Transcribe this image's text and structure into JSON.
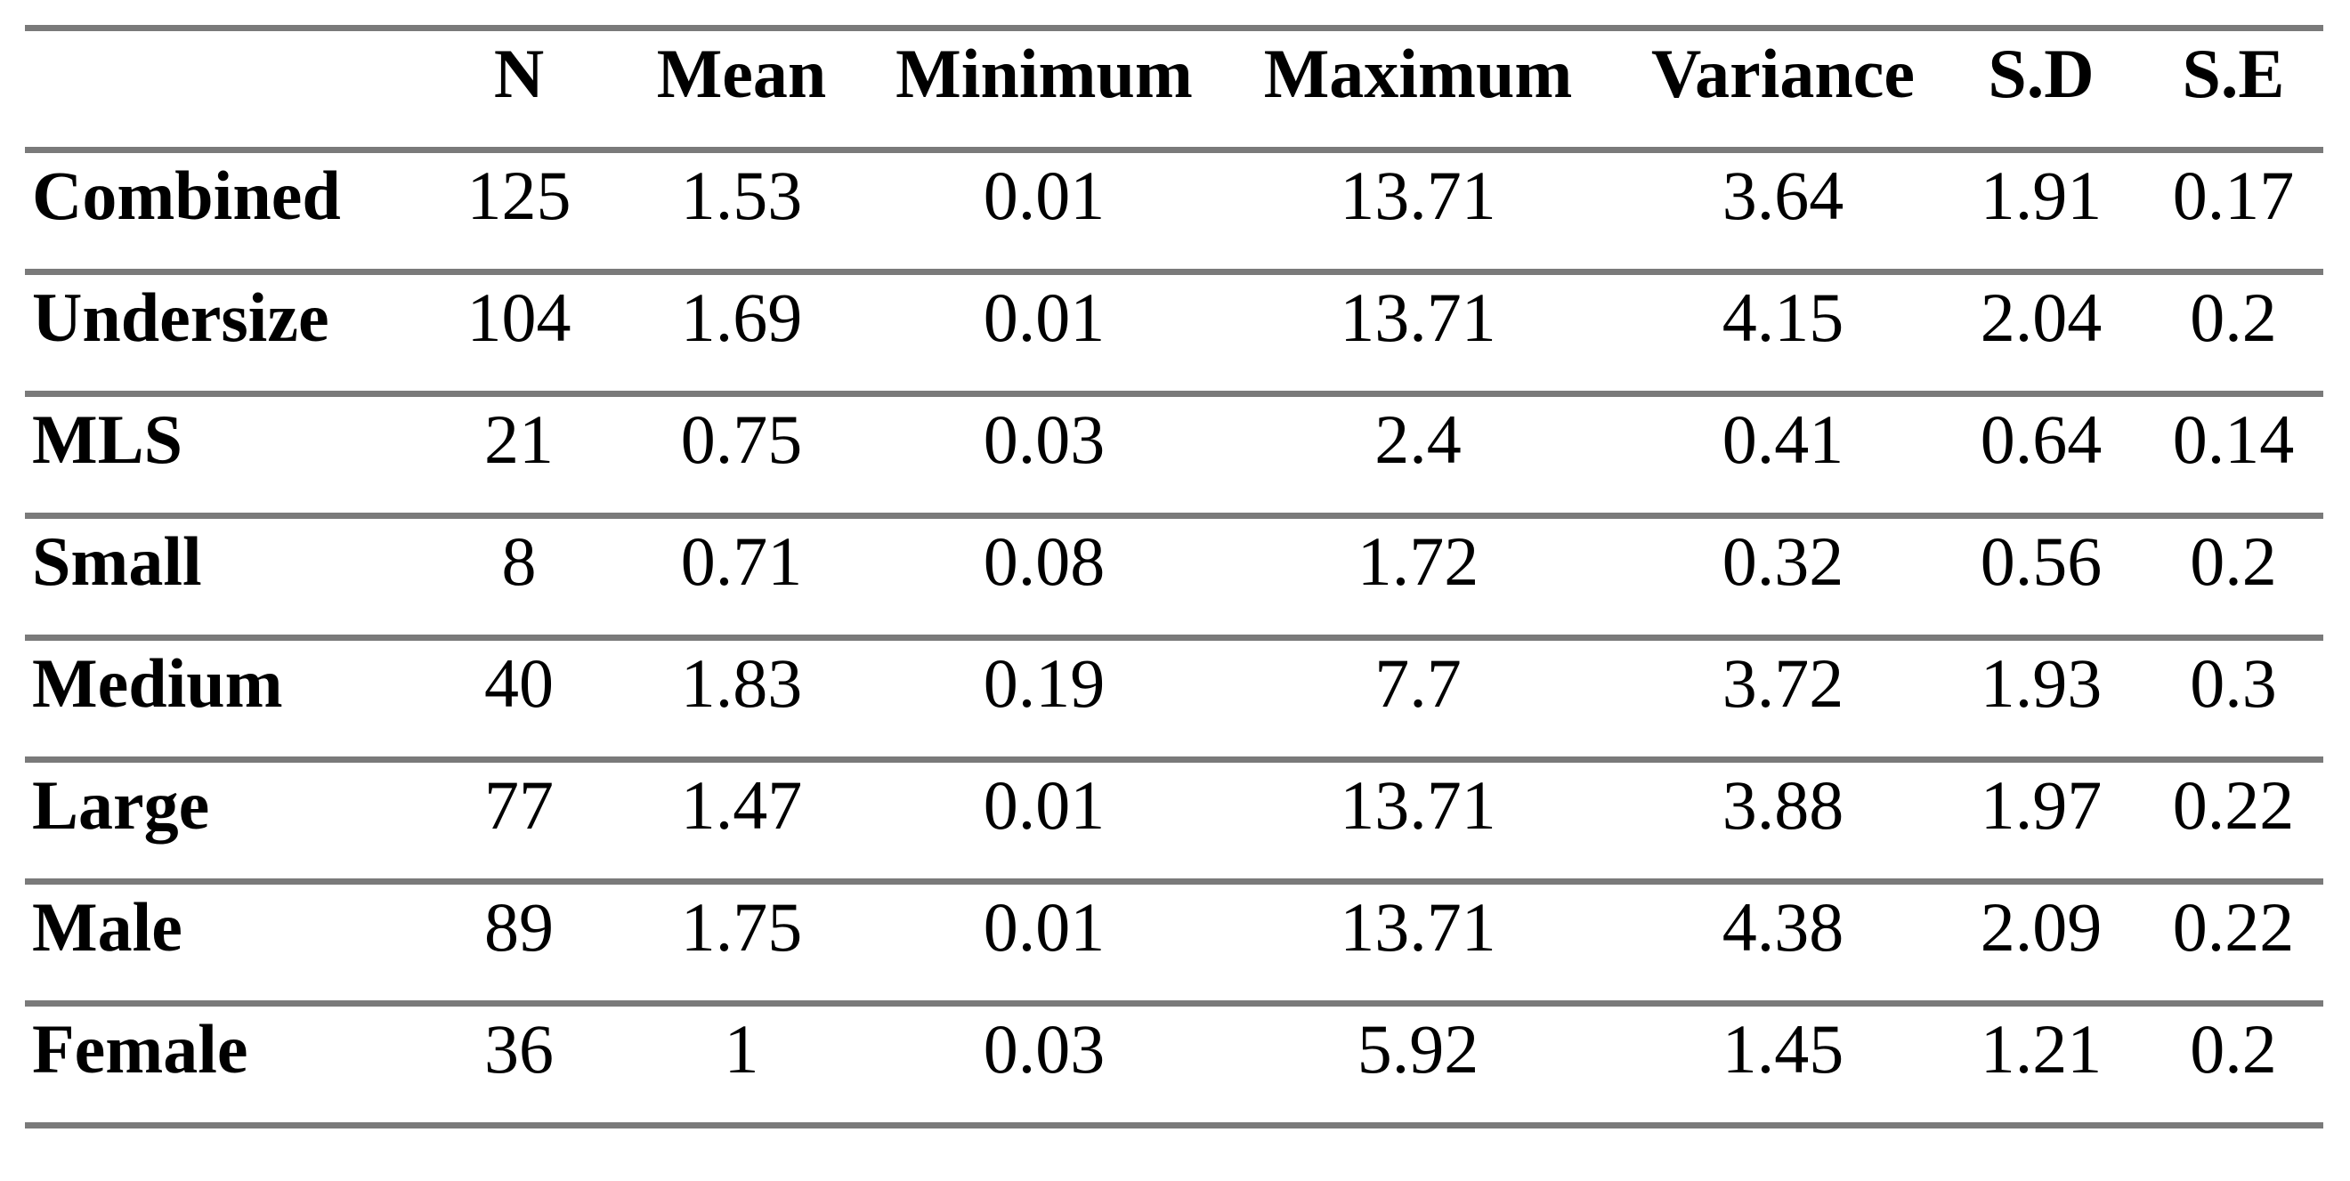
{
  "table": {
    "border_color": "#7a7a7a",
    "text_color": "#000000",
    "background_color": "#ffffff",
    "columns": [
      "",
      "N",
      "Mean",
      "Minimum",
      "Maximum",
      "Variance",
      "S.D",
      "S.E"
    ],
    "rows": [
      {
        "label": "Combined",
        "values": [
          "125",
          "1.53",
          "0.01",
          "13.71",
          "3.64",
          "1.91",
          "0.17"
        ]
      },
      {
        "label": "Undersize",
        "values": [
          "104",
          "1.69",
          "0.01",
          "13.71",
          "4.15",
          "2.04",
          "0.2"
        ]
      },
      {
        "label": "MLS",
        "values": [
          "21",
          "0.75",
          "0.03",
          "2.4",
          "0.41",
          "0.64",
          "0.14"
        ]
      },
      {
        "label": "Small",
        "values": [
          "8",
          "0.71",
          "0.08",
          "1.72",
          "0.32",
          "0.56",
          "0.2"
        ]
      },
      {
        "label": "Medium",
        "values": [
          "40",
          "1.83",
          "0.19",
          "7.7",
          "3.72",
          "1.93",
          "0.3"
        ]
      },
      {
        "label": "Large",
        "values": [
          "77",
          "1.47",
          "0.01",
          "13.71",
          "3.88",
          "1.97",
          "0.22"
        ]
      },
      {
        "label": "Male",
        "values": [
          "89",
          "1.75",
          "0.01",
          "13.71",
          "4.38",
          "2.09",
          "0.22"
        ]
      },
      {
        "label": "Female",
        "values": [
          "36",
          "1",
          "0.03",
          "5.92",
          "1.45",
          "1.21",
          "0.2"
        ]
      }
    ]
  }
}
